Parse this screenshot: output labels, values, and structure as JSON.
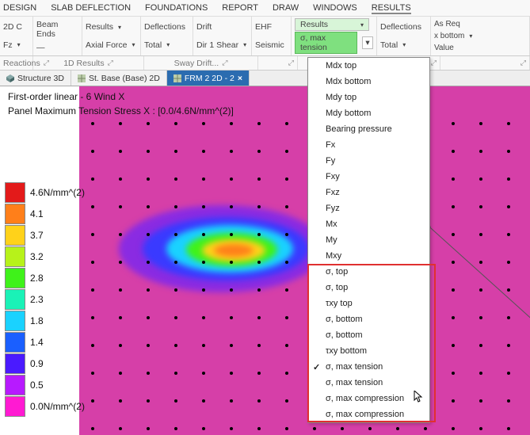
{
  "menu": {
    "items": [
      "DESIGN",
      "SLAB DEFLECTION",
      "FOUNDATIONS",
      "REPORT",
      "DRAW",
      "WINDOWS",
      "RESULTS"
    ],
    "active": 6
  },
  "ribbon": {
    "g1": {
      "r1": "2D  C",
      "r2": "Fz",
      "label": "Reactions"
    },
    "g2": {
      "r1": "Beam Ends",
      "r2": "—"
    },
    "g3": {
      "r1": "Results",
      "r2": "Axial Force"
    },
    "g23_label": "1D Results",
    "g4": {
      "r1": "Deflections",
      "r2": "Total"
    },
    "g5": {
      "r1": "Drift",
      "r2": "Dir 1 Shear"
    },
    "g45_label": "Sway Drift...",
    "g6": {
      "r1": "EHF",
      "r2": "Seismic"
    },
    "g7": {
      "r1": "Results",
      "r2": "σ, max tension"
    },
    "g8": {
      "r1": "Deflections",
      "r2": "Total"
    },
    "g9": {
      "r1": "As Req",
      "r2": "x bottom",
      "r3": "Value"
    }
  },
  "tabs": [
    {
      "icon": "cube",
      "label": "Structure 3D",
      "active": false
    },
    {
      "icon": "grid",
      "label": "St. Base (Base) 2D",
      "active": false
    },
    {
      "icon": "grid",
      "label": "FRM 2 2D - 2",
      "active": true,
      "closable": true
    }
  ],
  "view": {
    "title": "First-order linear - 6 Wind X",
    "subtitle": "Panel Maximum Tension Stress X : [0.0/4.6N/mm^(2)]"
  },
  "legend": [
    {
      "c": "#e31a1a",
      "t": "4.6N/mm^(2)"
    },
    {
      "c": "#ff7f1a",
      "t": "4.1"
    },
    {
      "c": "#ffd21a",
      "t": "3.7"
    },
    {
      "c": "#b7f21a",
      "t": "3.2"
    },
    {
      "c": "#3ff21a",
      "t": "2.8"
    },
    {
      "c": "#1af2b7",
      "t": "2.3"
    },
    {
      "c": "#1ad2ff",
      "t": "1.8"
    },
    {
      "c": "#1a5fff",
      "t": "1.4"
    },
    {
      "c": "#4a1aff",
      "t": "0.9"
    },
    {
      "c": "#b71aff",
      "t": "0.5"
    },
    {
      "c": "#ff1ad2",
      "t": "0.0N/mm^(2)"
    }
  ],
  "dropdown": {
    "items": [
      "Mdx top",
      "Mdx bottom",
      "Mdy top",
      "Mdy bottom",
      "Bearing pressure",
      "Fx",
      "Fy",
      "Fxy",
      "Fxz",
      "Fyz",
      "Mx",
      "My",
      "Mxy",
      "σ, top",
      "σ, top",
      "τxy top",
      "σ, bottom",
      "σ, bottom",
      "τxy bottom",
      "σ, max tension",
      "σ, max tension",
      "σ, max compression",
      "σ, max compression"
    ],
    "selected": 19,
    "highlight_start": 13,
    "highlight_end": 22
  },
  "colors": {
    "magenta": "#d63fa8"
  }
}
